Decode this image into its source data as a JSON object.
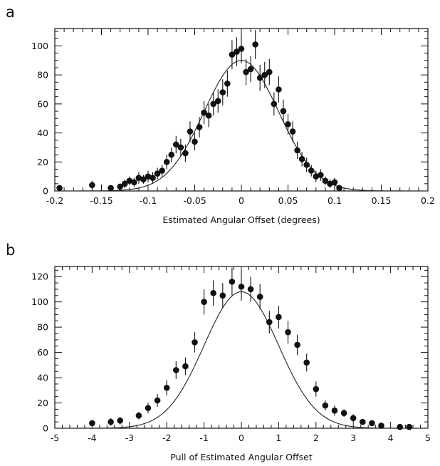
{
  "chart_data": [
    {
      "panel_label": "a",
      "type": "scatter",
      "xlabel": "Estimated Angular Offset (degrees)",
      "ylabel": "",
      "xlim": [
        -0.2,
        0.2
      ],
      "ylim": [
        0,
        112
      ],
      "xticks": [
        "-0.2",
        "-0.15",
        "-0.1",
        "-0.05",
        "0",
        "0.05",
        "0.1",
        "0.15",
        "0.2"
      ],
      "xtick_values": [
        -0.2,
        -0.15,
        -0.1,
        -0.05,
        0,
        0.05,
        0.1,
        0.15,
        0.2
      ],
      "yticks": [
        "0",
        "20",
        "40",
        "60",
        "80",
        "100"
      ],
      "ytick_values": [
        0,
        20,
        40,
        60,
        80,
        100
      ],
      "grid": false,
      "series": [
        {
          "x": [
            -0.195,
            -0.16,
            -0.14,
            -0.13,
            -0.125,
            -0.12,
            -0.115,
            -0.11,
            -0.105,
            -0.1,
            -0.095,
            -0.09,
            -0.085,
            -0.08,
            -0.075,
            -0.07,
            -0.065,
            -0.06,
            -0.055,
            -0.05,
            -0.045,
            -0.04,
            -0.035,
            -0.03,
            -0.025,
            -0.02,
            -0.015,
            -0.01,
            -0.005,
            0,
            0.005,
            0.01,
            0.015,
            0.02,
            0.025,
            0.03,
            0.035,
            0.04,
            0.045,
            0.05,
            0.055,
            0.06,
            0.065,
            0.07,
            0.075,
            0.08,
            0.085,
            0.09,
            0.095,
            0.1,
            0.105
          ],
          "y": [
            2,
            4,
            2,
            3,
            5,
            7,
            6,
            9,
            8,
            10,
            9,
            12,
            14,
            20,
            25,
            32,
            30,
            26,
            41,
            34,
            44,
            54,
            52,
            60,
            62,
            68,
            74,
            94,
            96,
            98,
            82,
            84,
            101,
            78,
            80,
            82,
            60,
            70,
            55,
            46,
            41,
            28,
            22,
            18,
            14,
            10,
            11,
            7,
            5,
            6,
            2
          ],
          "yerr": [
            2,
            3,
            2,
            2,
            3,
            3,
            3,
            4,
            3,
            4,
            4,
            4,
            4,
            5,
            5,
            6,
            6,
            6,
            7,
            6,
            7,
            8,
            8,
            8,
            8,
            9,
            9,
            10,
            10,
            10,
            9,
            9,
            10,
            9,
            9,
            9,
            8,
            9,
            8,
            7,
            7,
            6,
            5,
            5,
            4,
            4,
            4,
            3,
            3,
            3,
            2
          ]
        }
      ],
      "fit": {
        "type": "gaussian",
        "amplitude": 90,
        "mean": 0,
        "sigma": 0.04
      }
    },
    {
      "panel_label": "b",
      "type": "scatter",
      "xlabel": "Pull of Estimated Angular Offset",
      "ylabel": "",
      "xlim": [
        -5,
        5
      ],
      "ylim": [
        0,
        128
      ],
      "xticks": [
        "-5",
        "-4",
        "-3",
        "-2",
        "-1",
        "0",
        "1",
        "2",
        "3",
        "4",
        "5"
      ],
      "xtick_values": [
        -5,
        -4,
        -3,
        -2,
        -1,
        0,
        1,
        2,
        3,
        4,
        5
      ],
      "yticks": [
        "0",
        "20",
        "40",
        "60",
        "80",
        "100",
        "120"
      ],
      "ytick_values": [
        0,
        20,
        40,
        60,
        80,
        100,
        120
      ],
      "grid": false,
      "series": [
        {
          "x": [
            -4.0,
            -3.5,
            -3.25,
            -2.75,
            -2.5,
            -2.25,
            -2.0,
            -1.75,
            -1.5,
            -1.25,
            -1.0,
            -0.75,
            -0.5,
            -0.25,
            0.0,
            0.25,
            0.5,
            0.75,
            1.0,
            1.25,
            1.5,
            1.75,
            2.0,
            2.25,
            2.5,
            2.75,
            3.0,
            3.25,
            3.5,
            3.75,
            4.25,
            4.5
          ],
          "y": [
            4,
            5,
            6,
            10,
            16,
            22,
            32,
            46,
            49,
            68,
            100,
            107,
            105,
            116,
            112,
            110,
            104,
            84,
            88,
            76,
            66,
            52,
            31,
            18,
            14,
            12,
            8,
            5,
            4,
            2,
            1,
            1
          ],
          "yerr": [
            2,
            3,
            3,
            3,
            4,
            5,
            6,
            7,
            7,
            8,
            10,
            10,
            10,
            11,
            11,
            10,
            10,
            9,
            9,
            9,
            8,
            7,
            6,
            4,
            4,
            3,
            3,
            2,
            2,
            2,
            1,
            1
          ]
        }
      ],
      "fit": {
        "type": "gaussian",
        "amplitude": 108,
        "mean": 0,
        "sigma": 1.0
      }
    }
  ]
}
